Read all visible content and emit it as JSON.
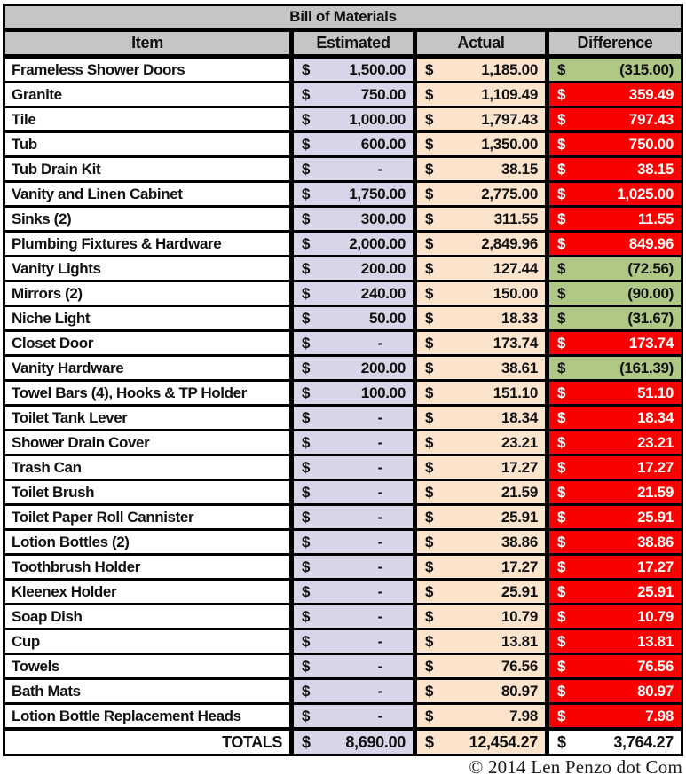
{
  "title": "Bill of Materials",
  "currency": "$",
  "table": {
    "columns": {
      "item": "Item",
      "estimated": "Estimated",
      "actual": "Actual",
      "difference": "Difference"
    },
    "rows": [
      {
        "item": "Frameless Shower Doors",
        "estimated": "1,500.00",
        "actual": "1,185.00",
        "difference": "(315.00)",
        "status": "under"
      },
      {
        "item": "Granite",
        "estimated": "750.00",
        "actual": "1,109.49",
        "difference": "359.49",
        "status": "over"
      },
      {
        "item": "Tile",
        "estimated": "1,000.00",
        "actual": "1,797.43",
        "difference": "797.43",
        "status": "over"
      },
      {
        "item": "Tub",
        "estimated": "600.00",
        "actual": "1,350.00",
        "difference": "750.00",
        "status": "over"
      },
      {
        "item": "Tub Drain Kit",
        "estimated": "-",
        "actual": "38.15",
        "difference": "38.15",
        "status": "over"
      },
      {
        "item": "Vanity and Linen Cabinet",
        "estimated": "1,750.00",
        "actual": "2,775.00",
        "difference": "1,025.00",
        "status": "over"
      },
      {
        "item": "Sinks (2)",
        "estimated": "300.00",
        "actual": "311.55",
        "difference": "11.55",
        "status": "over"
      },
      {
        "item": "Plumbing Fixtures & Hardware",
        "estimated": "2,000.00",
        "actual": "2,849.96",
        "difference": "849.96",
        "status": "over"
      },
      {
        "item": "Vanity Lights",
        "estimated": "200.00",
        "actual": "127.44",
        "difference": "(72.56)",
        "status": "under"
      },
      {
        "item": "Mirrors (2)",
        "estimated": "240.00",
        "actual": "150.00",
        "difference": "(90.00)",
        "status": "under"
      },
      {
        "item": "Niche Light",
        "estimated": "50.00",
        "actual": "18.33",
        "difference": "(31.67)",
        "status": "under"
      },
      {
        "item": "Closet Door",
        "estimated": "-",
        "actual": "173.74",
        "difference": "173.74",
        "status": "over"
      },
      {
        "item": "Vanity Hardware",
        "estimated": "200.00",
        "actual": "38.61",
        "difference": "(161.39)",
        "status": "under"
      },
      {
        "item": "Towel Bars (4), Hooks & TP Holder",
        "estimated": "100.00",
        "actual": "151.10",
        "difference": "51.10",
        "status": "over"
      },
      {
        "item": "Toilet Tank Lever",
        "estimated": "-",
        "actual": "18.34",
        "difference": "18.34",
        "status": "over"
      },
      {
        "item": "Shower Drain Cover",
        "estimated": "-",
        "actual": "23.21",
        "difference": "23.21",
        "status": "over"
      },
      {
        "item": "Trash Can",
        "estimated": "-",
        "actual": "17.27",
        "difference": "17.27",
        "status": "over"
      },
      {
        "item": "Toilet Brush",
        "estimated": "-",
        "actual": "21.59",
        "difference": "21.59",
        "status": "over"
      },
      {
        "item": "Toilet Paper Roll Cannister",
        "estimated": "-",
        "actual": "25.91",
        "difference": "25.91",
        "status": "over"
      },
      {
        "item": "Lotion Bottles (2)",
        "estimated": "-",
        "actual": "38.86",
        "difference": "38.86",
        "status": "over"
      },
      {
        "item": "Toothbrush Holder",
        "estimated": "-",
        "actual": "17.27",
        "difference": "17.27",
        "status": "over"
      },
      {
        "item": "Kleenex Holder",
        "estimated": "-",
        "actual": "25.91",
        "difference": "25.91",
        "status": "over"
      },
      {
        "item": "Soap Dish",
        "estimated": "-",
        "actual": "10.79",
        "difference": "10.79",
        "status": "over"
      },
      {
        "item": "Cup",
        "estimated": "-",
        "actual": "13.81",
        "difference": "13.81",
        "status": "over"
      },
      {
        "item": "Towels",
        "estimated": "-",
        "actual": "76.56",
        "difference": "76.56",
        "status": "over"
      },
      {
        "item": "Bath Mats",
        "estimated": "-",
        "actual": "80.97",
        "difference": "80.97",
        "status": "over"
      },
      {
        "item": "Lotion Bottle Replacement Heads",
        "estimated": "-",
        "actual": "7.98",
        "difference": "7.98",
        "status": "over"
      }
    ],
    "totals": {
      "label": "TOTALS",
      "estimated": "8,690.00",
      "actual": "12,454.27",
      "difference": "3,764.27"
    }
  },
  "footer": "© 2014 Len Penzo dot Com",
  "colors": {
    "header_gray": "#C5C5C5",
    "estimated_bg": "#D9D4E7",
    "actual_bg": "#FBE3CC",
    "under_budget_green": "#AFC885",
    "over_budget_red": "#FB0000",
    "border": "#000000"
  },
  "chart_data": {
    "type": "table",
    "title": "Bill of Materials",
    "columns": [
      "Item",
      "Estimated",
      "Actual",
      "Difference"
    ],
    "rows": [
      [
        "Frameless Shower Doors",
        1500.0,
        1185.0,
        -315.0
      ],
      [
        "Granite",
        750.0,
        1109.49,
        359.49
      ],
      [
        "Tile",
        1000.0,
        1797.43,
        797.43
      ],
      [
        "Tub",
        600.0,
        1350.0,
        750.0
      ],
      [
        "Tub Drain Kit",
        0,
        38.15,
        38.15
      ],
      [
        "Vanity and Linen Cabinet",
        1750.0,
        2775.0,
        1025.0
      ],
      [
        "Sinks (2)",
        300.0,
        311.55,
        11.55
      ],
      [
        "Plumbing Fixtures & Hardware",
        2000.0,
        2849.96,
        849.96
      ],
      [
        "Vanity Lights",
        200.0,
        127.44,
        -72.56
      ],
      [
        "Mirrors (2)",
        240.0,
        150.0,
        -90.0
      ],
      [
        "Niche Light",
        50.0,
        18.33,
        -31.67
      ],
      [
        "Closet Door",
        0,
        173.74,
        173.74
      ],
      [
        "Vanity Hardware",
        200.0,
        38.61,
        -161.39
      ],
      [
        "Towel Bars (4), Hooks & TP Holder",
        100.0,
        151.1,
        51.1
      ],
      [
        "Toilet Tank Lever",
        0,
        18.34,
        18.34
      ],
      [
        "Shower Drain Cover",
        0,
        23.21,
        23.21
      ],
      [
        "Trash Can",
        0,
        17.27,
        17.27
      ],
      [
        "Toilet Brush",
        0,
        21.59,
        21.59
      ],
      [
        "Toilet Paper Roll Cannister",
        0,
        25.91,
        25.91
      ],
      [
        "Lotion Bottles (2)",
        0,
        38.86,
        38.86
      ],
      [
        "Toothbrush Holder",
        0,
        17.27,
        17.27
      ],
      [
        "Kleenex Holder",
        0,
        25.91,
        25.91
      ],
      [
        "Soap Dish",
        0,
        10.79,
        10.79
      ],
      [
        "Cup",
        0,
        13.81,
        13.81
      ],
      [
        "Towels",
        0,
        76.56,
        76.56
      ],
      [
        "Bath Mats",
        0,
        80.97,
        80.97
      ],
      [
        "Lotion Bottle Replacement Heads",
        0,
        7.98,
        7.98
      ]
    ],
    "totals": {
      "estimated": 8690.0,
      "actual": 12454.27,
      "difference": 3764.27
    },
    "notes": "Difference cell is green when under budget (negative, shown in parentheses), red with white text when over budget. Estimated column lavender, Actual column peach, header rows gray."
  }
}
